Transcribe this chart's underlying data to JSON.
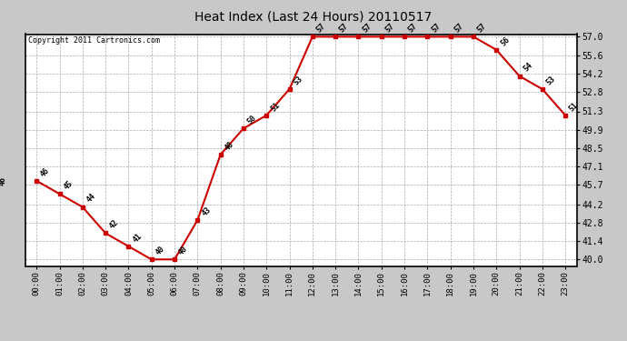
{
  "title": "Heat Index (Last 24 Hours) 20110517",
  "copyright": "Copyright 2011 Cartronics.com",
  "hours": [
    "00:00",
    "01:00",
    "02:00",
    "03:00",
    "04:00",
    "05:00",
    "06:00",
    "07:00",
    "08:00",
    "09:00",
    "10:00",
    "11:00",
    "12:00",
    "13:00",
    "14:00",
    "15:00",
    "16:00",
    "17:00",
    "18:00",
    "19:00",
    "20:00",
    "21:00",
    "22:00",
    "23:00"
  ],
  "values": [
    46,
    45,
    44,
    42,
    41,
    40,
    40,
    43,
    48,
    50,
    51,
    53,
    57,
    57,
    57,
    57,
    57,
    57,
    57,
    57,
    56,
    54,
    53,
    51
  ],
  "line_color": "#cc0000",
  "marker_color": "#cc0000",
  "bg_color": "#c8c8c8",
  "plot_bg_color": "#ffffff",
  "grid_color": "#aaaaaa",
  "title_color": "#000000",
  "ylim_min": 40.0,
  "ylim_max": 57.0,
  "yticks": [
    40.0,
    41.4,
    42.8,
    44.2,
    45.7,
    47.1,
    48.5,
    49.9,
    51.3,
    52.8,
    54.2,
    55.6,
    57.0
  ],
  "annotation_color": "#000000",
  "figwidth": 6.9,
  "figheight": 3.75,
  "dpi": 100
}
